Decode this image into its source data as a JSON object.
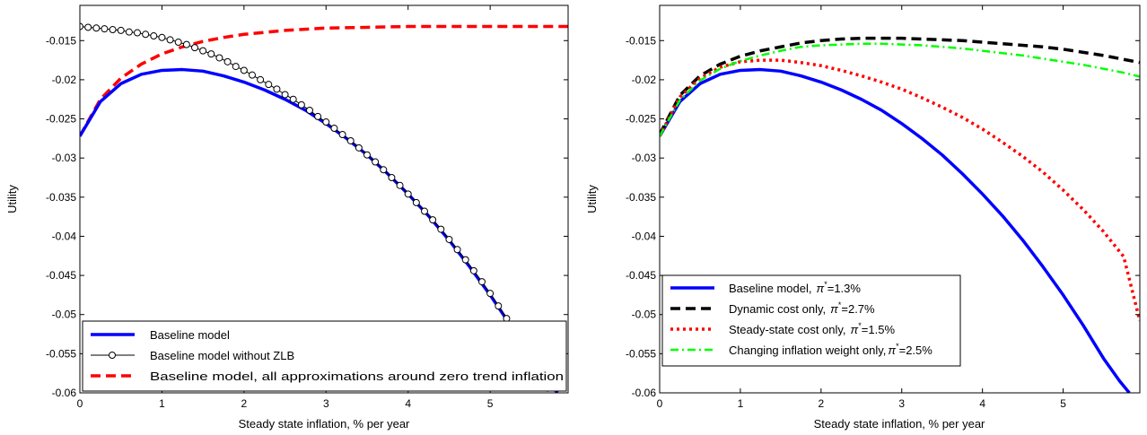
{
  "chart_data": [
    {
      "type": "line",
      "xlabel": "Steady state inflation, % per year",
      "ylabel": "Utility",
      "xlim": [
        0,
        5.95
      ],
      "ylim": [
        -0.06,
        -0.0105
      ],
      "xticks": [
        0,
        1,
        2,
        3,
        4,
        5
      ],
      "xtick_labels": [
        "0",
        "1",
        "2",
        "3",
        "4",
        "5"
      ],
      "yticks": [
        -0.06,
        -0.055,
        -0.05,
        -0.045,
        -0.04,
        -0.035,
        -0.03,
        -0.025,
        -0.02,
        -0.015
      ],
      "ytick_labels": [
        "-0.06",
        "-0.055",
        "-0.05",
        "-0.045",
        "-0.04",
        "-0.035",
        "-0.03",
        "-0.025",
        "-0.02",
        "-0.015"
      ],
      "grid": false,
      "legend_position": "bottom-left",
      "series": [
        {
          "name": "Baseline model",
          "color": "#0000ff",
          "dash": "solid",
          "marker": "none",
          "x": [
            0,
            0.25,
            0.5,
            0.75,
            1.0,
            1.25,
            1.5,
            1.75,
            2.0,
            2.25,
            2.5,
            2.75,
            3.0,
            3.25,
            3.5,
            3.75,
            4.0,
            4.25,
            4.5,
            4.75,
            5.0,
            5.25,
            5.5,
            5.7,
            5.82
          ],
          "y": [
            -0.0272,
            -0.0228,
            -0.0205,
            -0.0193,
            -0.0188,
            -0.0187,
            -0.0189,
            -0.0195,
            -0.0203,
            -0.0213,
            -0.0225,
            -0.0239,
            -0.0256,
            -0.0275,
            -0.0296,
            -0.032,
            -0.0346,
            -0.0374,
            -0.0405,
            -0.0439,
            -0.0475,
            -0.0514,
            -0.0556,
            -0.0585,
            -0.06
          ]
        },
        {
          "name": "Baseline model without ZLB",
          "color": "#000000",
          "dash": "solid",
          "marker": "circle",
          "x": [
            0,
            0.1,
            0.2,
            0.3,
            0.4,
            0.5,
            0.6,
            0.7,
            0.8,
            0.9,
            1.0,
            1.1,
            1.2,
            1.3,
            1.4,
            1.5,
            1.6,
            1.7,
            1.8,
            1.9,
            2.0,
            2.1,
            2.2,
            2.3,
            2.4,
            2.5,
            2.6,
            2.7,
            2.8,
            2.9,
            3.0,
            3.1,
            3.2,
            3.3,
            3.4,
            3.5,
            3.6,
            3.7,
            3.8,
            3.9,
            4.0,
            4.1,
            4.2,
            4.3,
            4.4,
            4.5,
            4.6,
            4.7,
            4.8,
            4.9,
            5.0,
            5.1,
            5.2,
            5.3,
            5.4,
            5.5,
            5.6,
            5.7
          ],
          "y": [
            -0.0132,
            -0.0133,
            -0.0134,
            -0.0135,
            -0.0136,
            -0.0137,
            -0.0139,
            -0.014,
            -0.0142,
            -0.0144,
            -0.0146,
            -0.0149,
            -0.0152,
            -0.0155,
            -0.0159,
            -0.0163,
            -0.0167,
            -0.0172,
            -0.0177,
            -0.0183,
            -0.0188,
            -0.0194,
            -0.02,
            -0.0206,
            -0.0212,
            -0.0219,
            -0.0225,
            -0.0232,
            -0.0239,
            -0.0247,
            -0.0254,
            -0.0262,
            -0.027,
            -0.0278,
            -0.0287,
            -0.0296,
            -0.0305,
            -0.0315,
            -0.0325,
            -0.0335,
            -0.0346,
            -0.0357,
            -0.0368,
            -0.0379,
            -0.0391,
            -0.0404,
            -0.0417,
            -0.043,
            -0.0444,
            -0.0458,
            -0.0473,
            -0.0489,
            -0.0505,
            -0.0521,
            -0.0538,
            -0.0556,
            -0.0575,
            -0.0594
          ]
        },
        {
          "name": "Baseline model, all approximations around zero trend inflation",
          "color": "#ff0000",
          "dash": "dashed",
          "marker": "none",
          "x": [
            0,
            0.25,
            0.5,
            0.75,
            1.0,
            1.25,
            1.5,
            1.75,
            2.0,
            2.5,
            3.0,
            3.5,
            4.0,
            4.5,
            5.0,
            5.5,
            5.95
          ],
          "y": [
            -0.0272,
            -0.0225,
            -0.0198,
            -0.018,
            -0.0167,
            -0.0158,
            -0.0151,
            -0.0146,
            -0.0142,
            -0.0137,
            -0.0134,
            -0.0133,
            -0.0132,
            -0.0132,
            -0.0132,
            -0.0132,
            -0.0132
          ]
        }
      ]
    },
    {
      "type": "line",
      "xlabel": "Steady state inflation, % per year",
      "ylabel": "Utility",
      "xlim": [
        0,
        5.95
      ],
      "ylim": [
        -0.06,
        -0.0105
      ],
      "xticks": [
        0,
        1,
        2,
        3,
        4,
        5
      ],
      "xtick_labels": [
        "0",
        "1",
        "2",
        "3",
        "4",
        "5"
      ],
      "yticks": [
        -0.06,
        -0.055,
        -0.05,
        -0.045,
        -0.04,
        -0.035,
        -0.03,
        -0.025,
        -0.02,
        -0.015
      ],
      "ytick_labels": [
        "-0.06",
        "-0.055",
        "-0.05",
        "-0.045",
        "-0.04",
        "-0.035",
        "-0.03",
        "-0.025",
        "-0.02",
        "-0.015"
      ],
      "grid": false,
      "legend_position": "bottom-left",
      "series": [
        {
          "name": "Baseline model,",
          "legend_suffix": "=1.3%",
          "color": "#0000ff",
          "dash": "solid",
          "marker": "none",
          "x": [
            0,
            0.25,
            0.5,
            0.75,
            1.0,
            1.25,
            1.5,
            1.75,
            2.0,
            2.25,
            2.5,
            2.75,
            3.0,
            3.25,
            3.5,
            3.75,
            4.0,
            4.25,
            4.5,
            4.75,
            5.0,
            5.25,
            5.5,
            5.7,
            5.82
          ],
          "y": [
            -0.0272,
            -0.0228,
            -0.0205,
            -0.0193,
            -0.0188,
            -0.0187,
            -0.0189,
            -0.0195,
            -0.0203,
            -0.0213,
            -0.0225,
            -0.0239,
            -0.0256,
            -0.0275,
            -0.0296,
            -0.032,
            -0.0346,
            -0.0374,
            -0.0405,
            -0.0439,
            -0.0475,
            -0.0514,
            -0.0556,
            -0.0585,
            -0.06
          ]
        },
        {
          "name": "Dynamic cost only,",
          "legend_suffix": "=2.7%",
          "color": "#000000",
          "dash": "dashed",
          "marker": "none",
          "x": [
            0,
            0.25,
            0.5,
            0.75,
            1.0,
            1.25,
            1.5,
            1.75,
            2.0,
            2.25,
            2.5,
            2.75,
            3.0,
            3.25,
            3.5,
            3.75,
            4.0,
            4.25,
            4.5,
            4.75,
            5.0,
            5.25,
            5.5,
            5.75,
            5.95
          ],
          "y": [
            -0.027,
            -0.022,
            -0.0195,
            -0.018,
            -0.017,
            -0.0163,
            -0.0158,
            -0.0153,
            -0.015,
            -0.0148,
            -0.0147,
            -0.0147,
            -0.0147,
            -0.0148,
            -0.0149,
            -0.015,
            -0.0152,
            -0.0154,
            -0.0156,
            -0.0158,
            -0.0161,
            -0.0165,
            -0.0169,
            -0.0174,
            -0.0178
          ]
        },
        {
          "name": "Steady-state cost only,",
          "legend_suffix": "=1.5%",
          "color": "#ff0000",
          "dash": "dotted",
          "marker": "none",
          "x": [
            0,
            0.25,
            0.5,
            0.75,
            1.0,
            1.25,
            1.5,
            1.75,
            2.0,
            2.25,
            2.5,
            2.75,
            3.0,
            3.25,
            3.5,
            3.75,
            4.0,
            4.25,
            4.5,
            4.75,
            5.0,
            5.25,
            5.5,
            5.75,
            5.95
          ],
          "y": [
            -0.0272,
            -0.0222,
            -0.0198,
            -0.0184,
            -0.0177,
            -0.0175,
            -0.0175,
            -0.0178,
            -0.0182,
            -0.0188,
            -0.0195,
            -0.0203,
            -0.0212,
            -0.0223,
            -0.0235,
            -0.0248,
            -0.0263,
            -0.028,
            -0.0298,
            -0.0318,
            -0.0341,
            -0.0366,
            -0.0394,
            -0.0426,
            -0.0508
          ]
        },
        {
          "name": "Changing inflation weight only,",
          "legend_suffix": "=2.5%",
          "color": "#00ff00",
          "dash": "dashdot",
          "marker": "none",
          "x": [
            0,
            0.25,
            0.5,
            0.75,
            1.0,
            1.25,
            1.5,
            1.75,
            2.0,
            2.25,
            2.5,
            2.75,
            3.0,
            3.25,
            3.5,
            3.75,
            4.0,
            4.25,
            4.5,
            4.75,
            5.0,
            5.25,
            5.5,
            5.75,
            5.95
          ],
          "y": [
            -0.0272,
            -0.0226,
            -0.0201,
            -0.0186,
            -0.0176,
            -0.0169,
            -0.0163,
            -0.0158,
            -0.0156,
            -0.0155,
            -0.0154,
            -0.0154,
            -0.0155,
            -0.0156,
            -0.0158,
            -0.016,
            -0.0163,
            -0.0166,
            -0.0169,
            -0.0173,
            -0.0177,
            -0.0181,
            -0.0186,
            -0.0191,
            -0.0196
          ]
        }
      ],
      "legend_symbol": "π",
      "legend_symbol_sup": "*"
    }
  ]
}
